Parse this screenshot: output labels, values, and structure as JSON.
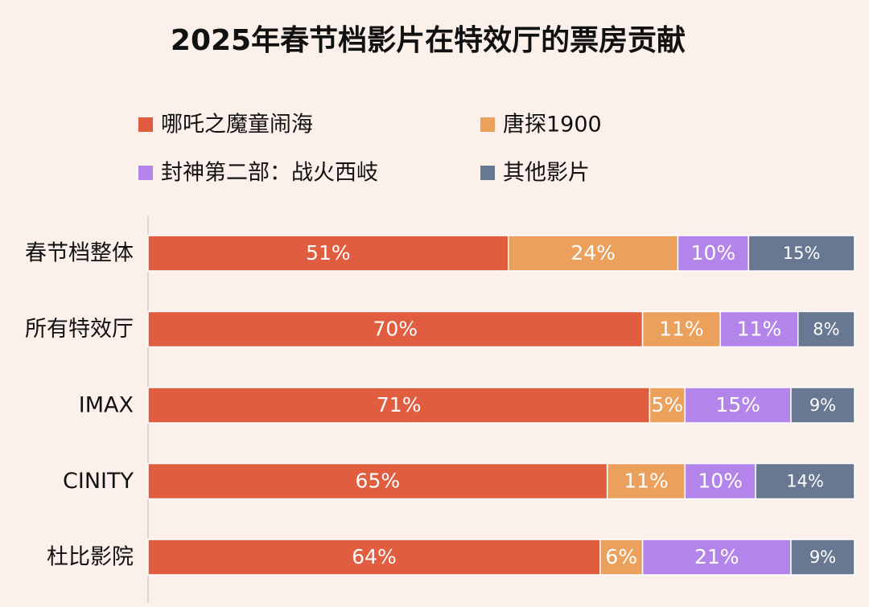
{
  "chart_data": {
    "type": "bar",
    "orientation": "horizontal",
    "stacked": true,
    "normalized": true,
    "title": "2025年春节档影片在特效厅的票房贡献",
    "xlabel": "",
    "ylabel": "",
    "xlim": [
      0,
      100
    ],
    "grid": false,
    "legend_position": "top",
    "categories": [
      "春节档整体",
      "所有特效厅",
      "IMAX",
      "CINITY",
      "杜比影院"
    ],
    "series": [
      {
        "name": "哪吒之魔童闹海",
        "color": "#E05D40",
        "values": [
          51,
          70,
          71,
          65,
          64
        ],
        "labels": [
          "51%",
          "70%",
          "71%",
          "65%",
          "64%"
        ]
      },
      {
        "name": "唐探1900",
        "color": "#EBA05C",
        "values": [
          24,
          11,
          5,
          11,
          6
        ],
        "labels": [
          "24%",
          "11%",
          "5%",
          "11%",
          "6%"
        ]
      },
      {
        "name": "封神第二部：战火西岐",
        "color": "#B384EA",
        "values": [
          10,
          11,
          15,
          10,
          21
        ],
        "labels": [
          "10%",
          "11%",
          "15%",
          "10%",
          "21%"
        ]
      },
      {
        "name": "其他影片",
        "color": "#687792",
        "values": [
          15,
          8,
          9,
          14,
          9
        ],
        "labels": [
          "15%",
          "8%",
          "9%",
          "14%",
          "9%"
        ]
      }
    ]
  }
}
